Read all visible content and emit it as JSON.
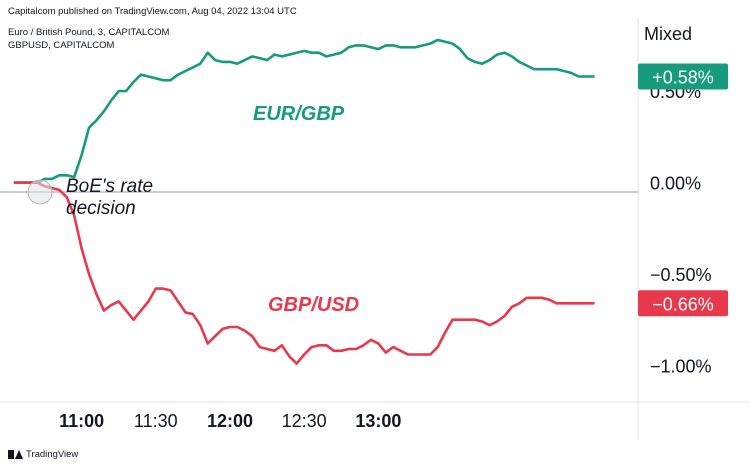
{
  "header": {
    "publisher_line": "Capitalcom published on TradingView.com, Aug 04, 2022 13:04 UTC"
  },
  "legend": {
    "line1": "Euro / British Pound, 3, CAPITALCOM",
    "line2": "GBPUSD, CAPITALCOM"
  },
  "footer": {
    "brand": "TradingView"
  },
  "scale_mode_label": "Mixed",
  "annotation": {
    "line1": "BoE's rate",
    "line2": "decision"
  },
  "colors": {
    "eurgbp": "#169b7c",
    "gbpusd": "#e8394c",
    "grid": "#e0e3eb",
    "text": "#131722"
  },
  "chart_data": {
    "type": "line",
    "title": "",
    "x_tick_labels": [
      "11:00",
      "11:30",
      "12:00",
      "12:30",
      "13:00"
    ],
    "x_tick_bold": [
      true,
      false,
      true,
      false,
      true
    ],
    "y_tick_labels": [
      "0.50%",
      "0.00%",
      "−0.50%",
      "−1.00%"
    ],
    "y_ticks": [
      0.5,
      0.0,
      -0.5,
      -1.0
    ],
    "ylim": [
      -1.2,
      0.9
    ],
    "xlim": [
      -33,
      225
    ],
    "x_unit": "minutes from 11:00",
    "series": [
      {
        "name": "EUR/GBP",
        "color": "#169b7c",
        "last_value_label": "+0.58%",
        "x": [
          -27,
          -24,
          -21,
          -18,
          -15,
          -12,
          -9,
          -6,
          -3,
          0,
          3,
          6,
          9,
          12,
          15,
          18,
          21,
          24,
          27,
          30,
          33,
          36,
          39,
          42,
          45,
          48,
          51,
          54,
          57,
          60,
          63,
          66,
          69,
          72,
          75,
          78,
          81,
          84,
          87,
          90,
          93,
          96,
          99,
          102,
          105,
          108,
          111,
          114,
          117,
          120,
          123,
          126,
          129,
          132,
          135,
          138,
          141,
          144,
          147,
          150,
          153,
          156,
          159,
          162,
          165,
          168,
          171,
          174,
          177,
          180,
          183,
          186,
          189,
          192,
          195,
          198,
          201,
          204,
          207
        ],
        "values": [
          0.0,
          0.0,
          0.0,
          0.0,
          0.02,
          0.02,
          0.04,
          0.04,
          0.03,
          0.15,
          0.3,
          0.34,
          0.39,
          0.45,
          0.5,
          0.5,
          0.55,
          0.59,
          0.58,
          0.57,
          0.56,
          0.56,
          0.59,
          0.61,
          0.63,
          0.65,
          0.71,
          0.67,
          0.66,
          0.66,
          0.65,
          0.67,
          0.69,
          0.68,
          0.67,
          0.7,
          0.69,
          0.7,
          0.71,
          0.72,
          0.71,
          0.71,
          0.69,
          0.7,
          0.71,
          0.74,
          0.75,
          0.75,
          0.74,
          0.73,
          0.75,
          0.75,
          0.74,
          0.74,
          0.74,
          0.75,
          0.76,
          0.78,
          0.77,
          0.76,
          0.73,
          0.68,
          0.66,
          0.65,
          0.67,
          0.7,
          0.71,
          0.69,
          0.66,
          0.64,
          0.62,
          0.62,
          0.62,
          0.62,
          0.61,
          0.6,
          0.58,
          0.58,
          0.58
        ]
      },
      {
        "name": "GBP/USD",
        "color": "#e8394c",
        "last_value_label": "−0.66%",
        "x": [
          -27,
          -24,
          -21,
          -18,
          -15,
          -12,
          -9,
          -6,
          -3,
          0,
          3,
          6,
          9,
          12,
          15,
          18,
          21,
          24,
          27,
          30,
          33,
          36,
          39,
          42,
          45,
          48,
          51,
          54,
          57,
          60,
          63,
          66,
          69,
          72,
          75,
          78,
          81,
          84,
          87,
          90,
          93,
          96,
          99,
          102,
          105,
          108,
          111,
          114,
          117,
          120,
          123,
          126,
          129,
          132,
          135,
          138,
          141,
          144,
          147,
          150,
          153,
          156,
          159,
          162,
          165,
          168,
          171,
          174,
          177,
          180,
          183,
          186,
          189,
          192,
          195,
          198,
          201,
          204,
          207
        ],
        "values": [
          0.0,
          0.0,
          0.0,
          0.0,
          -0.02,
          -0.03,
          -0.04,
          -0.08,
          -0.18,
          -0.36,
          -0.5,
          -0.61,
          -0.7,
          -0.67,
          -0.65,
          -0.7,
          -0.75,
          -0.7,
          -0.65,
          -0.58,
          -0.58,
          -0.59,
          -0.65,
          -0.71,
          -0.72,
          -0.78,
          -0.88,
          -0.84,
          -0.8,
          -0.79,
          -0.79,
          -0.81,
          -0.84,
          -0.9,
          -0.91,
          -0.92,
          -0.89,
          -0.95,
          -0.99,
          -0.94,
          -0.9,
          -0.89,
          -0.89,
          -0.92,
          -0.92,
          -0.91,
          -0.91,
          -0.89,
          -0.86,
          -0.88,
          -0.93,
          -0.9,
          -0.92,
          -0.94,
          -0.94,
          -0.94,
          -0.94,
          -0.9,
          -0.82,
          -0.75,
          -0.75,
          -0.75,
          -0.75,
          -0.76,
          -0.78,
          -0.76,
          -0.73,
          -0.68,
          -0.66,
          -0.63,
          -0.63,
          -0.63,
          -0.64,
          -0.66,
          -0.66,
          -0.66,
          -0.66,
          -0.66,
          -0.66
        ]
      }
    ],
    "grid": true
  }
}
